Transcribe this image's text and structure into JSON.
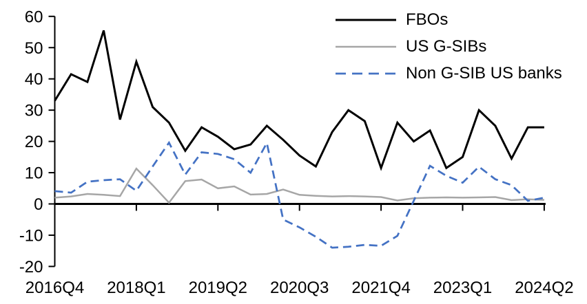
{
  "chart_data": {
    "type": "line",
    "title": "",
    "xlabel": "",
    "ylabel": "",
    "grid": false,
    "background": "#ffffff",
    "ylim": [
      -20,
      60
    ],
    "y_ticks": [
      60,
      50,
      40,
      30,
      20,
      10,
      0,
      -10,
      -20
    ],
    "x_categories": [
      "2016Q4",
      "2017Q1",
      "2017Q2",
      "2017Q3",
      "2017Q4",
      "2018Q1",
      "2018Q2",
      "2018Q3",
      "2018Q4",
      "2019Q1",
      "2019Q2",
      "2019Q3",
      "2019Q4",
      "2020Q1",
      "2020Q2",
      "2020Q3",
      "2020Q4",
      "2021Q1",
      "2021Q2",
      "2021Q3",
      "2021Q4",
      "2022Q1",
      "2022Q2",
      "2022Q3",
      "2022Q4",
      "2023Q1",
      "2023Q2",
      "2023Q3",
      "2023Q4",
      "2024Q1",
      "2024Q2"
    ],
    "x_tick_indices": [
      0,
      5,
      10,
      15,
      20,
      25,
      30
    ],
    "x_tick_labels": [
      "2016Q4",
      "2018Q1",
      "2019Q2",
      "2020Q3",
      "2021Q4",
      "2023Q1",
      "2024Q2"
    ],
    "legend_position": "top-right",
    "axis_color": "#000000",
    "series": [
      {
        "name": "FBOs",
        "color": "#000000",
        "dash": "solid",
        "stroke_width": 3,
        "values": [
          33,
          41.5,
          39,
          55.5,
          27,
          45.5,
          31,
          26,
          17,
          24.5,
          21.5,
          17.5,
          19,
          25,
          20.5,
          15.5,
          12,
          23,
          30,
          26.5,
          11.5,
          26,
          20,
          23.5,
          11.5,
          15,
          30,
          25,
          14.5,
          24.5,
          24.5
        ]
      },
      {
        "name": "US G-SIBs",
        "color": "#a6a6a6",
        "dash": "solid",
        "stroke_width": 2.5,
        "values": [
          2,
          2.4,
          3.2,
          2.9,
          2.5,
          11.3,
          6,
          0.4,
          7.3,
          7.8,
          5,
          5.6,
          3,
          3.2,
          4.6,
          2.9,
          2.6,
          2.4,
          2.5,
          2.4,
          2.2,
          1.1,
          1.8,
          2,
          2.1,
          2,
          2.1,
          2.2,
          1.2,
          1.5,
          1.3
        ]
      },
      {
        "name": "Non G-SIB US banks",
        "color": "#4472c4",
        "dash": "dashed",
        "stroke_width": 2.75,
        "values": [
          4.1,
          3.6,
          7.1,
          7.6,
          7.9,
          4.2,
          12,
          19.6,
          9.4,
          16.5,
          16,
          14.3,
          10,
          19.5,
          -5,
          -7.5,
          -10.5,
          -14,
          -13.7,
          -13.1,
          -13.4,
          -10.2,
          1,
          12.2,
          9,
          6.8,
          11.9,
          7.9,
          6,
          1,
          2
        ]
      }
    ]
  }
}
